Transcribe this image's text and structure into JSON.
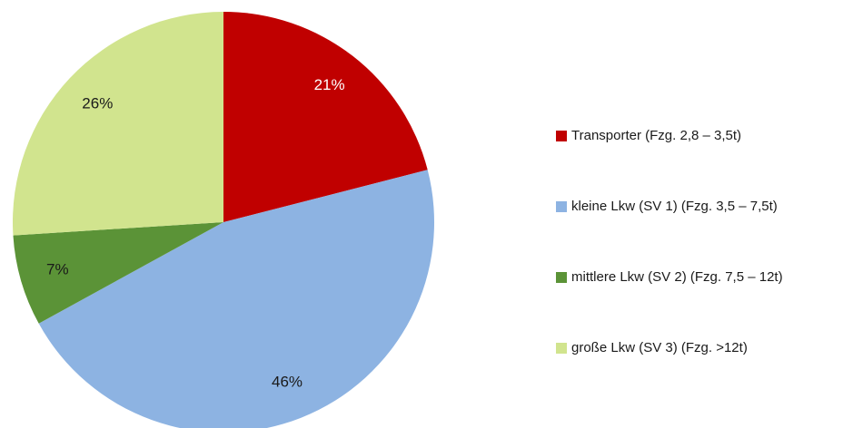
{
  "chart_data": {
    "type": "pie",
    "categories": [
      "Transporter  (Fzg. 2,8 – 3,5t)",
      "kleine Lkw (SV 1) (Fzg. 3,5 – 7,5t)",
      "mittlere Lkw (SV 2) (Fzg. 7,5 – 12t)",
      "große Lkw (SV 3) (Fzg. >12t)"
    ],
    "values": [
      21,
      46,
      7,
      26
    ],
    "value_labels": [
      "21%",
      "46%",
      "7%",
      "26%"
    ],
    "colors": [
      "#c00000",
      "#8db3e2",
      "#5b9337",
      "#d1e48e"
    ],
    "label_colors": [
      "#ffffff",
      "#1a1a1a",
      "#1a1a1a",
      "#1a1a1a"
    ],
    "legend": "right"
  }
}
